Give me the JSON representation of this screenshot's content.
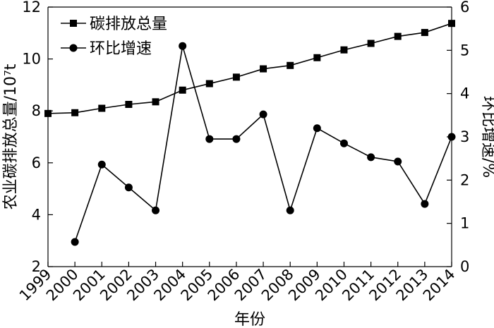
{
  "chart_data": {
    "type": "line",
    "xlabel": "年份",
    "ylabel_left": "农业碳排放总量/10⁷t",
    "ylabel_right": "环比增速/%",
    "x": [
      "1999",
      "2000",
      "2001",
      "2002",
      "2003",
      "2004",
      "2005",
      "2006",
      "2007",
      "2008",
      "2009",
      "2010",
      "2011",
      "2012",
      "2013",
      "2014"
    ],
    "y_left_ticks": [
      "2",
      "4",
      "6",
      "8",
      "10",
      "12"
    ],
    "y_right_ticks": [
      "0",
      "1",
      "2",
      "3",
      "4",
      "5",
      "6"
    ],
    "ylim_left": [
      2,
      12
    ],
    "ylim_right": [
      0,
      6
    ],
    "legend_position": "top-left",
    "grid": false,
    "series": [
      {
        "name": "碳排放总量",
        "axis": "left",
        "marker": "square",
        "values": [
          7.9,
          7.93,
          8.1,
          8.25,
          8.35,
          8.8,
          9.05,
          9.3,
          9.62,
          9.75,
          10.05,
          10.35,
          10.6,
          10.87,
          11.02,
          11.37
        ]
      },
      {
        "name": "环比增速",
        "axis": "right",
        "marker": "circle",
        "values": [
          null,
          0.57,
          2.36,
          1.83,
          1.3,
          5.1,
          2.95,
          2.95,
          3.52,
          1.3,
          3.2,
          2.85,
          2.53,
          2.43,
          1.45,
          3.0
        ]
      }
    ]
  }
}
